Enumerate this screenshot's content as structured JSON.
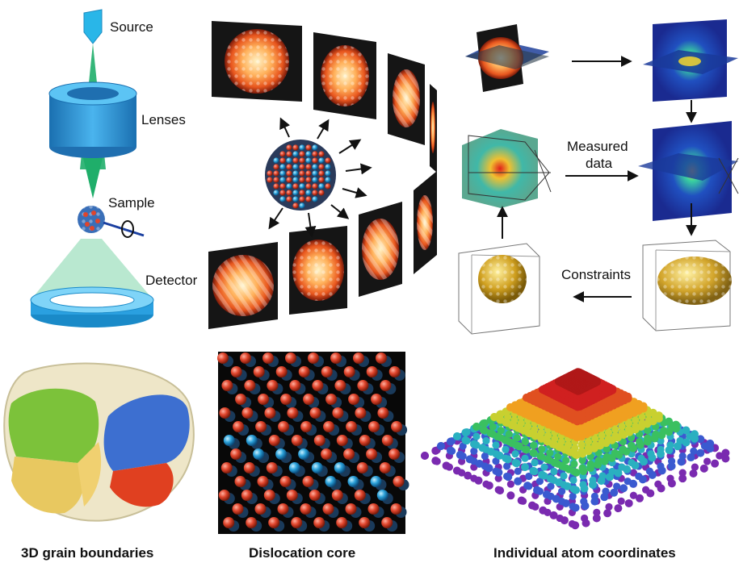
{
  "setup": {
    "source": "Source",
    "lenses": "Lenses",
    "sample": "Sample",
    "detector": "Detector"
  },
  "reconstruction": {
    "measured_line1": "Measured",
    "measured_line2": "data",
    "constraints": "Constraints"
  },
  "captions": {
    "grains": "3D grain boundaries",
    "dislocation": "Dislocation core",
    "coordinates": "Individual atom coordinates"
  },
  "colors": {
    "source_blue": "#29b6e8",
    "beam_green": "#1fae6a",
    "lens_blue": "#2a8fd0",
    "atom_red": "#e0452c",
    "atom_blue": "#2aa0d8",
    "grain_green": "#7cc23a",
    "grain_blue": "#3d6fd0",
    "grain_red": "#e04020",
    "grain_yellow": "#e8c860"
  }
}
